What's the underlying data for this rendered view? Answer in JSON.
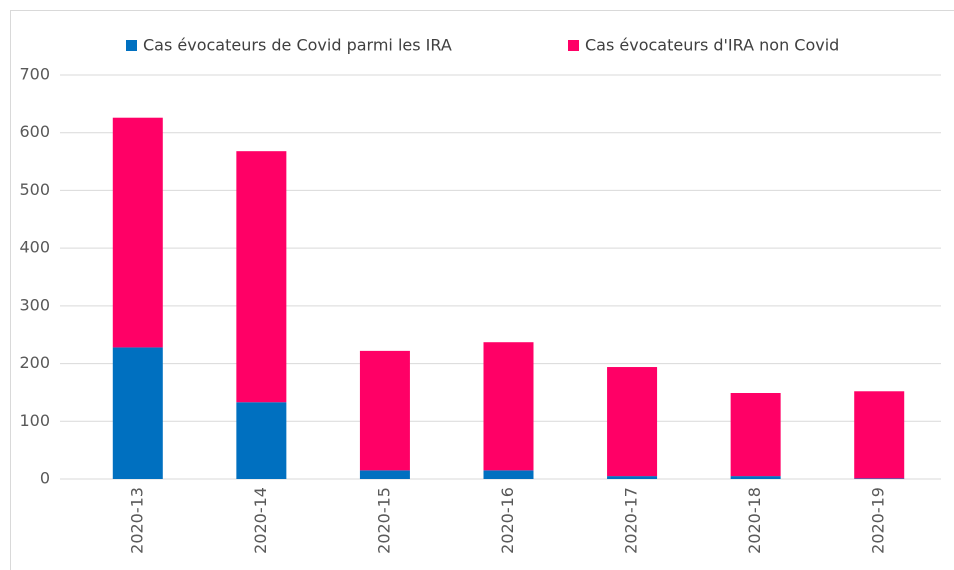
{
  "chart_data": {
    "type": "bar",
    "stacked": true,
    "categories": [
      "2020-13",
      "2020-14",
      "2020-15",
      "2020-16",
      "2020-17",
      "2020-18",
      "2020-19"
    ],
    "series": [
      {
        "name": "Cas évocateurs de Covid parmi les IRA",
        "color": "#0070c0",
        "values": [
          228,
          133,
          15,
          15,
          5,
          5,
          1
        ]
      },
      {
        "name": "Cas évocateurs d'IRA non Covid",
        "color": "#ff0066",
        "values": [
          398,
          435,
          207,
          222,
          189,
          144,
          151
        ]
      }
    ],
    "ylim": [
      0,
      700
    ],
    "yticks": [
      0,
      100,
      200,
      300,
      400,
      500,
      600,
      700
    ],
    "grid": true,
    "legend": "top"
  }
}
